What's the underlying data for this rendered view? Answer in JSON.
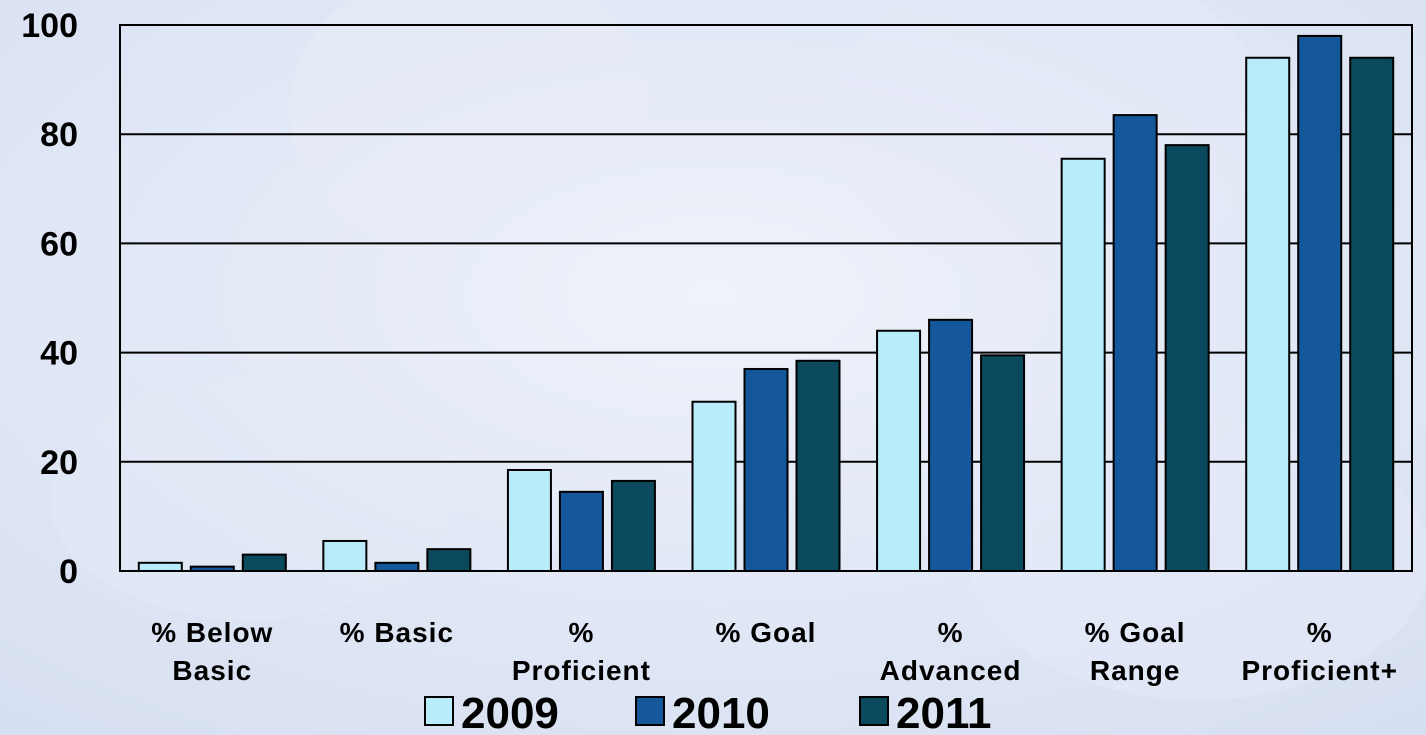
{
  "chart_data": {
    "type": "bar",
    "categories": [
      [
        "% Below",
        "Basic"
      ],
      [
        "% Basic"
      ],
      [
        "%",
        "Proficient"
      ],
      [
        "% Goal"
      ],
      [
        "%",
        "Advanced"
      ],
      [
        "% Goal",
        "Range"
      ],
      [
        "%",
        "Proficient+"
      ]
    ],
    "series": [
      {
        "name": "2009",
        "color": "#b8ecfa",
        "values": [
          1.5,
          5.5,
          18.5,
          31,
          44,
          75.5,
          94
        ]
      },
      {
        "name": "2010",
        "color": "#15579b",
        "values": [
          0.8,
          1.5,
          14.5,
          37,
          46,
          83.5,
          98
        ]
      },
      {
        "name": "2011",
        "color": "#0a4a5c",
        "values": [
          3,
          4,
          16.5,
          38.5,
          39.5,
          78,
          94
        ]
      }
    ],
    "ylim": [
      0,
      100
    ],
    "yticks": [
      0,
      20,
      40,
      60,
      80,
      100
    ],
    "grid": true,
    "legend_position": "bottom"
  }
}
